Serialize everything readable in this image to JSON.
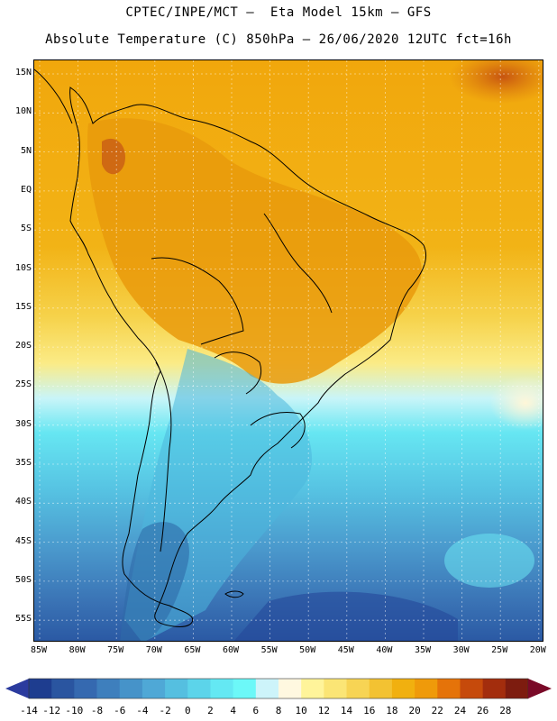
{
  "header": {
    "line1": "CPTEC/INPE/MCT –  Eta Model 15km – GFS",
    "line2": "Absolute Temperature (C) 850hPa – 26/06/2020 12UTC fct=16h"
  },
  "map": {
    "lat_labels": [
      "15N",
      "10N",
      "5N",
      "EQ",
      "5S",
      "10S",
      "15S",
      "20S",
      "25S",
      "30S",
      "35S",
      "40S",
      "45S",
      "50S",
      "55S"
    ],
    "lon_labels": [
      "85W",
      "80W",
      "75W",
      "70W",
      "65W",
      "60W",
      "55W",
      "50W",
      "45W",
      "40W",
      "35W",
      "30W",
      "25W",
      "20W"
    ],
    "colors": {
      "ocean_warm": "#f2ae0e",
      "land_warm": "#e4900c",
      "hot": "#c85a12",
      "cold_deep": "#2e66a8",
      "coast": "#000000"
    }
  },
  "colorbar": {
    "labels": [
      "-14",
      "-12",
      "-10",
      "-8",
      "-6",
      "-4",
      "-2",
      "0",
      "2",
      "4",
      "6",
      "8",
      "10",
      "12",
      "14",
      "16",
      "18",
      "20",
      "22",
      "24",
      "26",
      "28"
    ],
    "colors": [
      "#1e3d8f",
      "#2a55a0",
      "#3569b0",
      "#3e7fbd",
      "#4693c9",
      "#4fa8d6",
      "#55bfe0",
      "#5cd4ea",
      "#64e8f3",
      "#6cf8f8",
      "#cdf4fa",
      "#fff8e0",
      "#fff49a",
      "#fbe575",
      "#f7d454",
      "#f3c232",
      "#f1b00f",
      "#ef9a0a",
      "#e57309",
      "#c64a0b",
      "#a32d0d",
      "#7d1c0f"
    ],
    "under_color": "#2b3b9e",
    "over_color": "#7a0a28"
  }
}
